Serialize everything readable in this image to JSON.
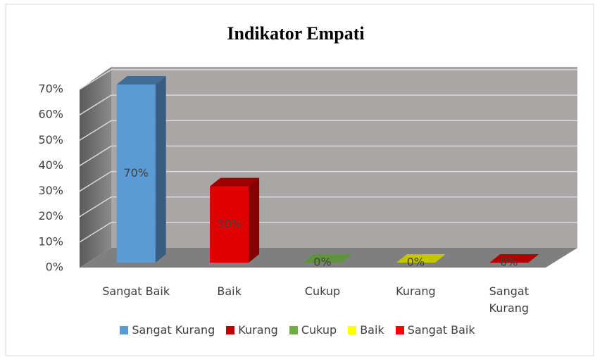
{
  "chart_data": {
    "type": "bar3d",
    "title": "Indikator Empati",
    "categories": [
      "Sangat Baik",
      "Baik",
      "Cukup",
      "Kurang",
      "Sangat Kurang"
    ],
    "values": [
      70,
      30,
      0,
      0,
      0
    ],
    "value_labels": [
      "70%",
      "30%",
      "0%",
      "0%",
      "0%"
    ],
    "colors": [
      "#5b9bd5",
      "#e00000",
      "#70ad47",
      "#e6e600",
      "#d00000"
    ],
    "ylim": [
      0,
      70
    ],
    "yticks": [
      {
        "value": 0,
        "label": "0%"
      },
      {
        "value": 10,
        "label": "10%"
      },
      {
        "value": 20,
        "label": "20%"
      },
      {
        "value": 30,
        "label": "30%"
      },
      {
        "value": 40,
        "label": "40%"
      },
      {
        "value": 50,
        "label": "50%"
      },
      {
        "value": 60,
        "label": "60%"
      },
      {
        "value": 70,
        "label": "70%"
      }
    ],
    "grid": true,
    "legend": [
      {
        "name": "Sangat Kurang",
        "color": "#5b9bd5"
      },
      {
        "name": "Kurang",
        "color": "#c00000"
      },
      {
        "name": "Cukup",
        "color": "#70ad47"
      },
      {
        "name": "Baik",
        "color": "#ffff00"
      },
      {
        "name": "Sangat Baik",
        "color": "#ff0000"
      }
    ]
  }
}
